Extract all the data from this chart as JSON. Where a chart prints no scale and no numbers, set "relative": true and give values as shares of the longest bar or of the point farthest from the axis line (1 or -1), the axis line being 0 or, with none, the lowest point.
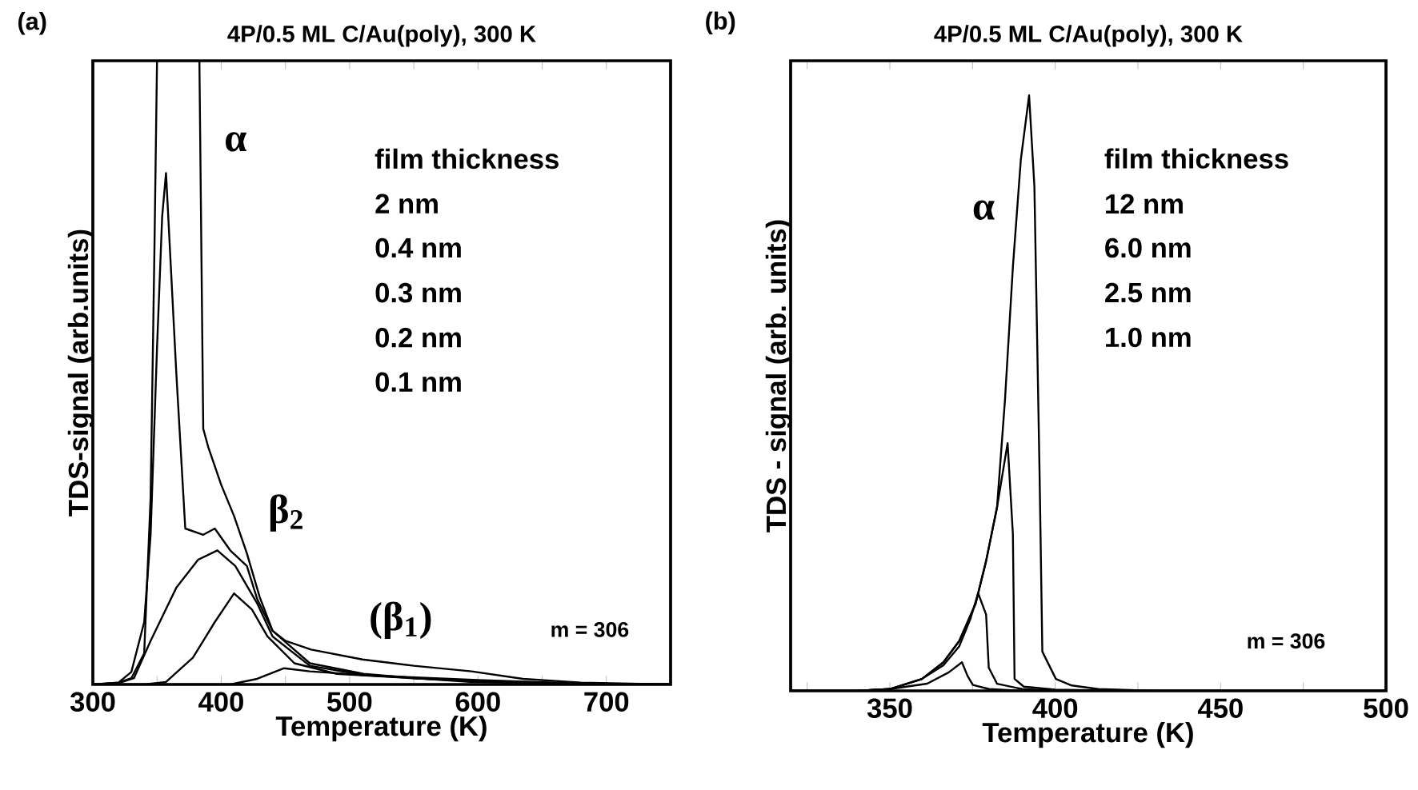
{
  "chart_data": [
    {
      "type": "line",
      "title": "4P/0.5 ML C/Au(poly), 300 K",
      "xlabel": "Temperature (K)",
      "ylabel": "TDS-signal (arb.units)",
      "relative": true,
      "xlim": [
        300,
        750
      ],
      "xticks": [
        300,
        {
          "value": 350,
          "label": null
        },
        400,
        {
          "value": 450,
          "label": null
        },
        500,
        {
          "value": 550,
          "label": null
        },
        600,
        {
          "value": 650,
          "label": null
        },
        700,
        {
          "value": 750,
          "label": null
        }
      ],
      "series": [
        {
          "color": "#000000",
          "x": [
            300,
            320,
            330,
            340,
            345,
            348,
            350,
            383,
            386,
            390,
            400,
            410,
            420,
            430,
            440,
            450,
            470,
            510,
            550,
            595,
            635,
            680,
            750
          ],
          "values": [
            0,
            0.003,
            0.01,
            0.05,
            0.3,
            0.7,
            1.0,
            1.0,
            0.41,
            0.38,
            0.32,
            0.27,
            0.21,
            0.14,
            0.086,
            0.07,
            0.056,
            0.04,
            0.03,
            0.021,
            0.009,
            0.003,
            0
          ]
        },
        {
          "color": "#000000",
          "x": [
            300,
            320,
            330,
            340,
            345,
            350,
            354,
            357,
            365,
            372,
            386,
            395,
            407,
            420,
            428,
            440,
            469,
            511,
            552,
            594,
            650,
            750
          ],
          "values": [
            0,
            0.003,
            0.02,
            0.1,
            0.24,
            0.54,
            0.75,
            0.82,
            0.5,
            0.25,
            0.24,
            0.25,
            0.215,
            0.19,
            0.137,
            0.086,
            0.034,
            0.017,
            0.01,
            0.004,
            0.002,
            0
          ]
        },
        {
          "color": "#000000",
          "x": [
            300,
            320,
            332,
            345,
            365,
            382,
            397,
            411,
            428,
            440,
            469,
            511,
            552,
            600,
            650,
            750
          ],
          "values": [
            0,
            0.002,
            0.01,
            0.07,
            0.155,
            0.2,
            0.215,
            0.19,
            0.13,
            0.077,
            0.03,
            0.015,
            0.01,
            0.005,
            0.002,
            0
          ]
        },
        {
          "color": "#000000",
          "x": [
            300,
            340,
            357,
            378,
            395,
            410,
            424,
            436,
            457,
            490,
            550,
            600,
            700,
            750
          ],
          "values": [
            0,
            0,
            0.004,
            0.043,
            0.1,
            0.146,
            0.12,
            0.077,
            0.034,
            0.017,
            0.01,
            0.005,
            0.001,
            0
          ]
        },
        {
          "color": "#000000",
          "x": [
            300,
            407,
            428,
            449,
            469,
            511,
            600,
            700,
            750
          ],
          "values": [
            0,
            0,
            0.009,
            0.026,
            0.021,
            0.015,
            0.007,
            0,
            0
          ]
        }
      ],
      "annotations": [
        "(a)",
        "α",
        "film thickness",
        "2 nm",
        "0.4 nm",
        "0.3 nm",
        "0.2 nm",
        "0.1 nm",
        "β$_{2}$",
        "(β$_{1}$)",
        "m = 306"
      ]
    },
    {
      "type": "line",
      "title": "4P/0.5 ML C/Au(poly), 300 K",
      "xlabel": "Temperature (K)",
      "ylabel": "TDS - signal (arb. units)",
      "relative": true,
      "xlim": [
        320,
        500
      ],
      "xticks": [
        {
          "value": 325,
          "label": null
        },
        350,
        {
          "value": 375,
          "label": null
        },
        400,
        {
          "value": 425,
          "label": null
        },
        450,
        {
          "value": 475,
          "label": null
        },
        500
      ],
      "series": [
        {
          "color": "#000000",
          "x": [
            320,
            340,
            350,
            359.7,
            366.2,
            371,
            375.9,
            379.1,
            382.4,
            384.8,
            387.2,
            389.6,
            392.1,
            393.7,
            395.3,
            396.1,
            400.2,
            405,
            413,
            430,
            500
          ],
          "values": [
            0,
            0,
            0.003,
            0.02,
            0.048,
            0.084,
            0.146,
            0.218,
            0.308,
            0.488,
            0.712,
            0.892,
            1.0,
            0.847,
            0.353,
            0.066,
            0.02,
            0.009,
            0.003,
            0,
            0
          ]
        },
        {
          "color": "#000000",
          "x": [
            320,
            340,
            350,
            359.7,
            366.2,
            371,
            375.9,
            379.1,
            382.4,
            385.6,
            387.2,
            387.7,
            390.5,
            400,
            420,
            500
          ],
          "values": [
            0,
            0,
            0.003,
            0.02,
            0.048,
            0.084,
            0.146,
            0.218,
            0.308,
            0.416,
            0.263,
            0.02,
            0.007,
            0.002,
            0,
            0
          ]
        },
        {
          "color": "#000000",
          "x": [
            320,
            340,
            350,
            359.7,
            366.2,
            371,
            374.3,
            376.7,
            379.1,
            379.9,
            382.4,
            390,
            400,
            500
          ],
          "values": [
            0,
            0,
            0.003,
            0.02,
            0.043,
            0.075,
            0.12,
            0.164,
            0.128,
            0.039,
            0.012,
            0.003,
            0,
            0
          ]
        },
        {
          "color": "#000000",
          "x": [
            320,
            340,
            350,
            361.3,
            367.8,
            371.8,
            373.5,
            375.1,
            380,
            390,
            500
          ],
          "values": [
            0,
            0,
            0.003,
            0.012,
            0.031,
            0.048,
            0.025,
            0.01,
            0.003,
            0,
            0
          ]
        }
      ],
      "annotations": [
        "(b)",
        "α",
        "film thickness",
        "12 nm",
        "6.0 nm",
        "2.5 nm",
        "1.0 nm",
        "m = 306"
      ]
    }
  ]
}
